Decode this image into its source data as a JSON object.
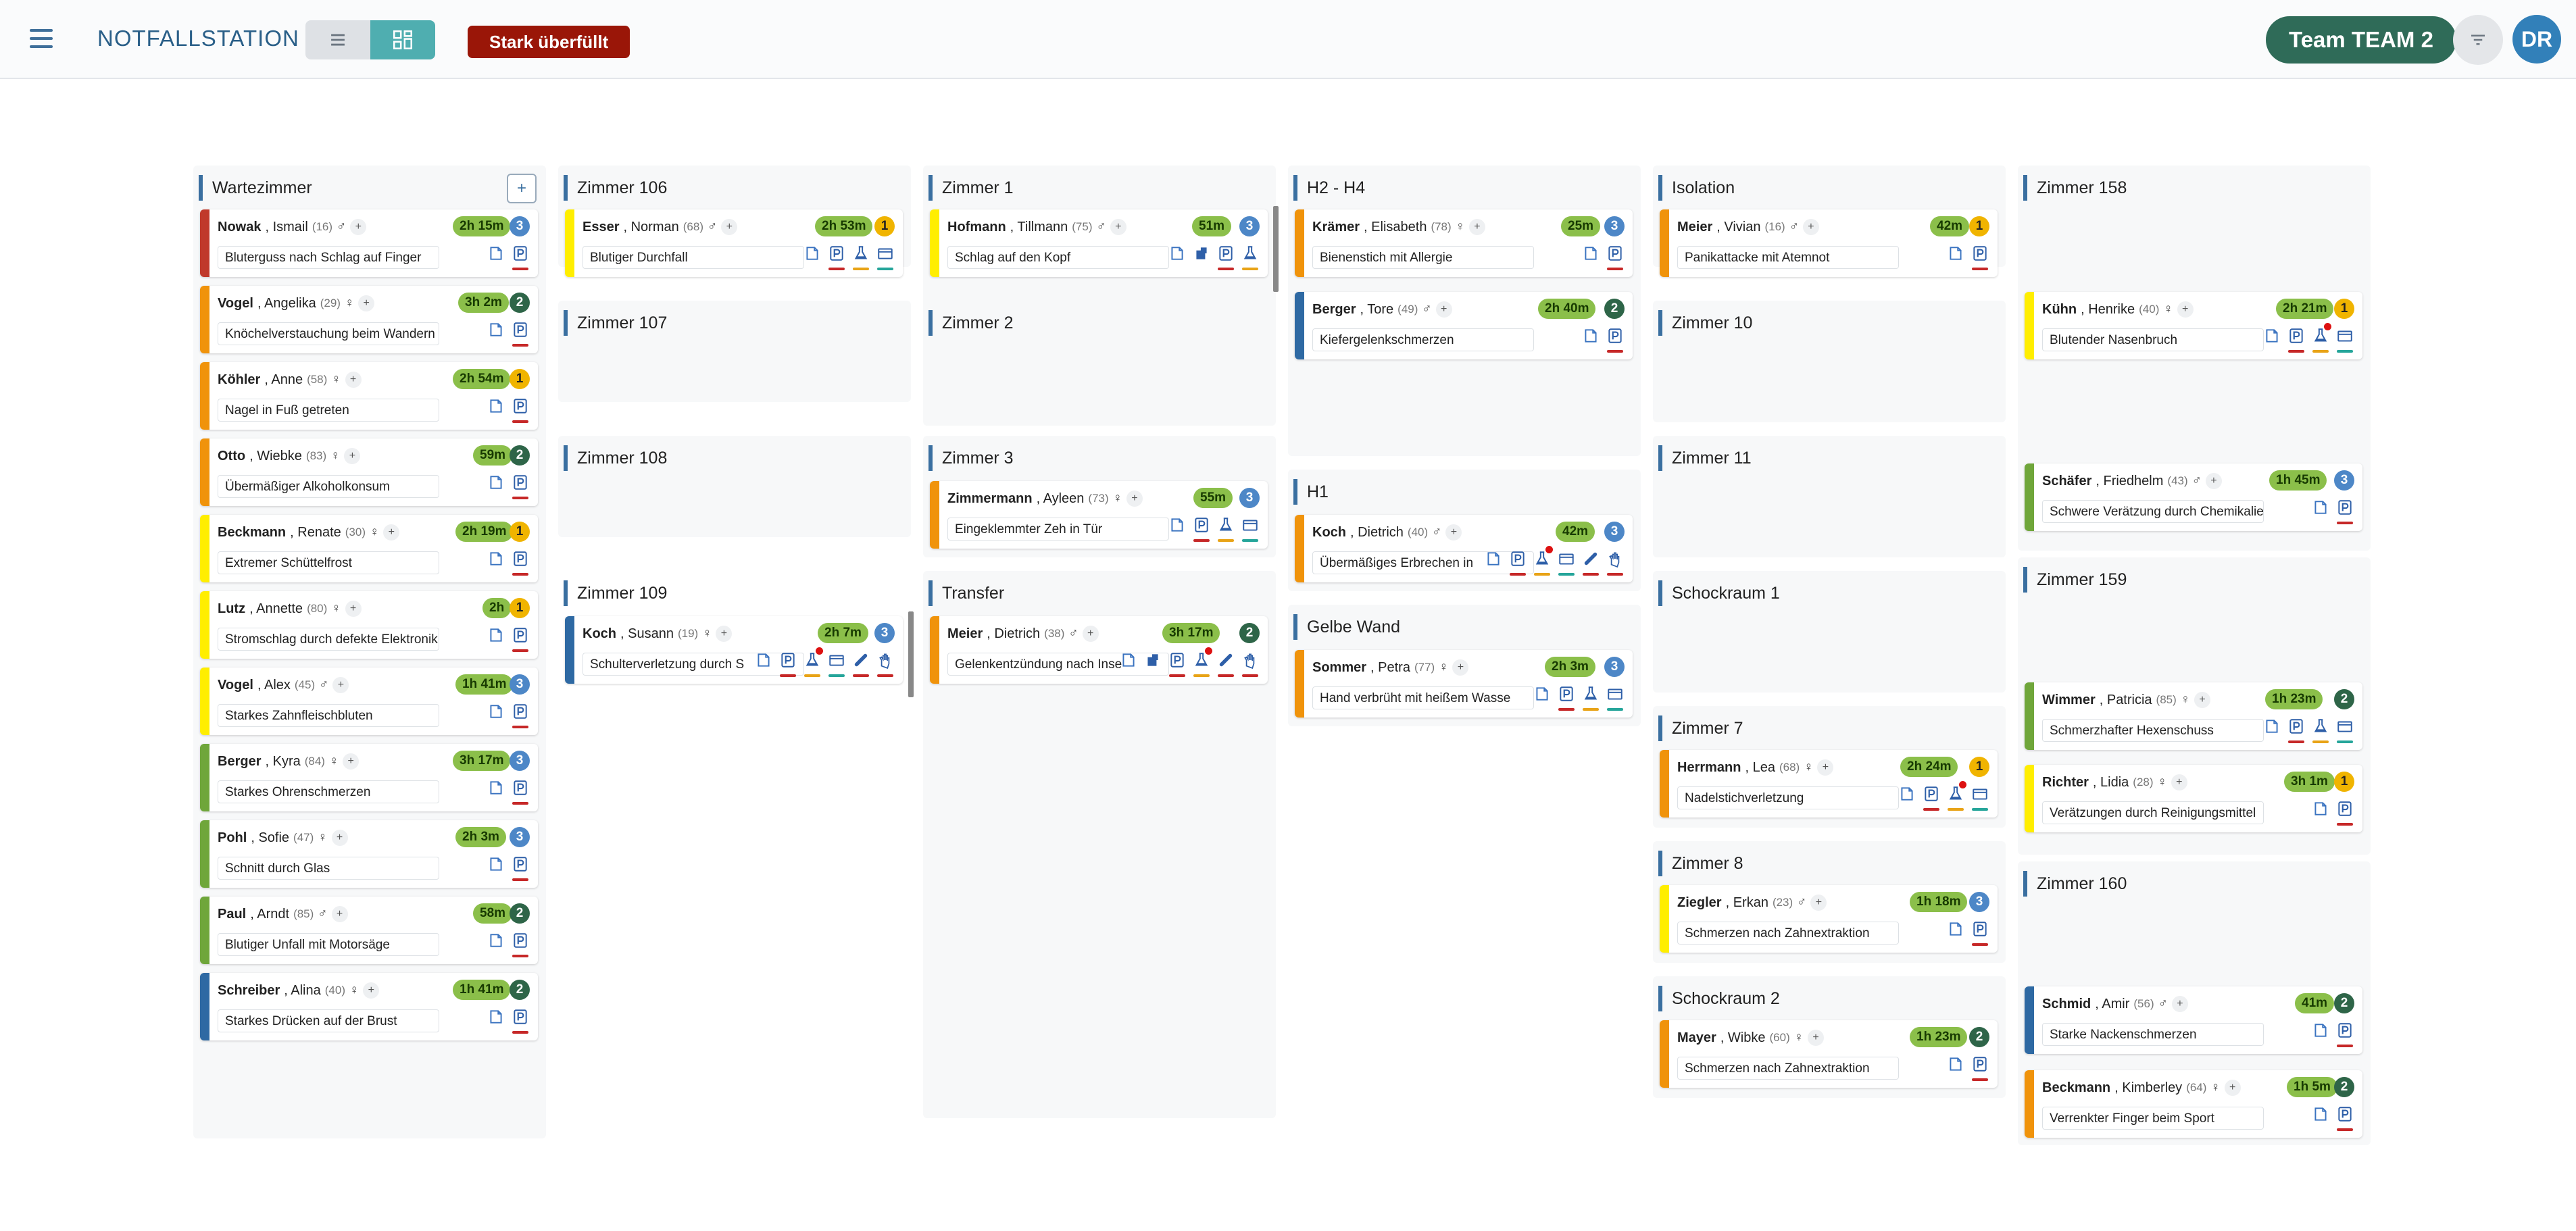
{
  "app": {
    "title": "NOTFALLSTATION",
    "alert_label": "Stark überfüllt",
    "team_label": "Team TEAM 2",
    "user_initials": "DR"
  },
  "colors": {
    "red": "#c0392b",
    "orange": "#f0930b",
    "yellow": "#ffee00",
    "green": "#6fa63a",
    "blue": "#2e69a3"
  },
  "rooms": {
    "wartezimmer": {
      "title": "Wartezimmer",
      "add_label": "+"
    },
    "z106": {
      "title": "Zimmer 106"
    },
    "z107": {
      "title": "Zimmer 107"
    },
    "z108": {
      "title": "Zimmer 108"
    },
    "z109": {
      "title": "Zimmer 109"
    },
    "z1": {
      "title": "Zimmer 1"
    },
    "z2": {
      "title": "Zimmer 2"
    },
    "z3": {
      "title": "Zimmer 3"
    },
    "transfer": {
      "title": "Transfer"
    },
    "h2h4": {
      "title": "H2 - H4"
    },
    "h1": {
      "title": "H1"
    },
    "gelbe": {
      "title": "Gelbe Wand"
    },
    "isolation": {
      "title": "Isolation"
    },
    "z10": {
      "title": "Zimmer 10"
    },
    "z11": {
      "title": "Zimmer 11"
    },
    "schock1": {
      "title": "Schockraum 1"
    },
    "z7": {
      "title": "Zimmer 7"
    },
    "z8": {
      "title": "Zimmer 8"
    },
    "schock2": {
      "title": "Schockraum 2"
    },
    "z158": {
      "title": "Zimmer 158"
    },
    "z159": {
      "title": "Zimmer 159"
    },
    "z160": {
      "title": "Zimmer 160"
    }
  },
  "patients": [
    {
      "last": "Nowak",
      "first": ", Ismail",
      "age": "(16)",
      "sex": "♂",
      "time": "2h 15m",
      "prio": "3",
      "complaint": "Bluterguss nach Schlag auf Finger"
    },
    {
      "last": "Vogel",
      "first": ", Angelika",
      "age": "(29)",
      "sex": "♀",
      "time": "3h 2m",
      "prio": "2",
      "complaint": "Knöchelverstauchung beim Wandern"
    },
    {
      "last": "Köhler",
      "first": ", Anne",
      "age": "(58)",
      "sex": "♀",
      "time": "2h 54m",
      "prio": "1",
      "complaint": "Nagel in Fuß getreten"
    },
    {
      "last": "Otto",
      "first": ", Wiebke",
      "age": "(83)",
      "sex": "♀",
      "time": "59m",
      "prio": "2",
      "complaint": "Übermäßiger Alkoholkonsum"
    },
    {
      "last": "Beckmann",
      "first": ", Renate",
      "age": "(30)",
      "sex": "♀",
      "time": "2h 19m",
      "prio": "1",
      "complaint": "Extremer Schüttelfrost"
    },
    {
      "last": "Lutz",
      "first": ", Annette",
      "age": "(80)",
      "sex": "♀",
      "time": "2h",
      "prio": "1",
      "complaint": "Stromschlag durch defekte Elektronik"
    },
    {
      "last": "Vogel",
      "first": ", Alex",
      "age": "(45)",
      "sex": "♂",
      "time": "1h 41m",
      "prio": "3",
      "complaint": "Starkes Zahnfleischbluten"
    },
    {
      "last": "Berger",
      "first": ", Kyra",
      "age": "(84)",
      "sex": "♀",
      "time": "3h 17m",
      "prio": "3",
      "complaint": "Starkes Ohrenschmerzen"
    },
    {
      "last": "Pohl",
      "first": ", Sofie",
      "age": "(47)",
      "sex": "♀",
      "time": "2h 3m",
      "prio": "3",
      "complaint": "Schnitt durch Glas"
    },
    {
      "last": "Paul",
      "first": ", Arndt",
      "age": "(85)",
      "sex": "♂",
      "time": "58m",
      "prio": "2",
      "complaint": "Blutiger Unfall mit Motorsäge"
    },
    {
      "last": "Schreiber",
      "first": ", Alina",
      "age": "(40)",
      "sex": "♀",
      "time": "1h 41m",
      "prio": "2",
      "complaint": "Starkes Drücken auf der Brust"
    },
    {
      "last": "Esser",
      "first": ", Norman",
      "age": "(68)",
      "sex": "♂",
      "time": "2h 53m",
      "prio": "1",
      "complaint": "Blutiger Durchfall"
    },
    {
      "last": "Koch",
      "first": ", Susann",
      "age": "(19)",
      "sex": "♀",
      "time": "2h 7m",
      "prio": "3",
      "complaint": "Schulterverletzung durch S"
    },
    {
      "last": "Hofmann",
      "first": ", Tillmann",
      "age": "(75)",
      "sex": "♂",
      "time": "51m",
      "prio": "3",
      "complaint": "Schlag auf den Kopf"
    },
    {
      "last": "Zimmermann",
      "first": ", Ayleen",
      "age": "(73)",
      "sex": "♀",
      "time": "55m",
      "prio": "3",
      "complaint": "Eingeklemmter Zeh in Tür"
    },
    {
      "last": "Meier",
      "first": ", Dietrich",
      "age": "(38)",
      "sex": "♂",
      "time": "3h 17m",
      "prio": "2",
      "complaint": "Gelenkentzündung nach Inse"
    },
    {
      "last": "Krämer",
      "first": ", Elisabeth",
      "age": "(78)",
      "sex": "♀",
      "time": "25m",
      "prio": "3",
      "complaint": "Bienenstich mit Allergie"
    },
    {
      "last": "Berger",
      "first": ", Tore",
      "age": "(49)",
      "sex": "♂",
      "time": "2h 40m",
      "prio": "2",
      "complaint": "Kiefergelenkschmerzen"
    },
    {
      "last": "Koch",
      "first": ", Dietrich",
      "age": "(40)",
      "sex": "♂",
      "time": "42m",
      "prio": "3",
      "complaint": "Übermäßiges Erbrechen in"
    },
    {
      "last": "Sommer",
      "first": ", Petra",
      "age": "(77)",
      "sex": "♀",
      "time": "2h 3m",
      "prio": "3",
      "complaint": "Hand verbrüht mit heißem Wasse"
    },
    {
      "last": "Meier",
      "first": ", Vivian",
      "age": "(16)",
      "sex": "♂",
      "time": "42m",
      "prio": "1",
      "complaint": "Panikattacke mit Atemnot"
    },
    {
      "last": "Herrmann",
      "first": ", Lea",
      "age": "(68)",
      "sex": "♀",
      "time": "2h 24m",
      "prio": "1",
      "complaint": "Nadelstichverletzung"
    },
    {
      "last": "Ziegler",
      "first": ", Erkan",
      "age": "(23)",
      "sex": "♂",
      "time": "1h 18m",
      "prio": "3",
      "complaint": "Schmerzen nach Zahnextraktion"
    },
    {
      "last": "Mayer",
      "first": ", Wibke",
      "age": "(60)",
      "sex": "♀",
      "time": "1h 23m",
      "prio": "2",
      "complaint": "Schmerzen nach Zahnextraktion"
    },
    {
      "last": "Kühn",
      "first": ", Henrike",
      "age": "(40)",
      "sex": "♀",
      "time": "2h 21m",
      "prio": "1",
      "complaint": "Blutender Nasenbruch"
    },
    {
      "last": "Schäfer",
      "first": ", Friedhelm",
      "age": "(43)",
      "sex": "♂",
      "time": "1h 45m",
      "prio": "3",
      "complaint": "Schwere Verätzung durch Chemikalie"
    },
    {
      "last": "Wimmer",
      "first": ", Patricia",
      "age": "(85)",
      "sex": "♀",
      "time": "1h 23m",
      "prio": "2",
      "complaint": "Schmerzhafter Hexenschuss"
    },
    {
      "last": "Richter",
      "first": ", Lidia",
      "age": "(28)",
      "sex": "♀",
      "time": "3h 1m",
      "prio": "1",
      "complaint": "Verätzungen durch Reinigungsmittel"
    },
    {
      "last": "Schmid",
      "first": ", Amir",
      "age": "(56)",
      "sex": "♂",
      "time": "41m",
      "prio": "2",
      "complaint": "Starke Nackenschmerzen"
    },
    {
      "last": "Beckmann",
      "first": ", Kimberley",
      "age": "(64)",
      "sex": "♀",
      "time": "1h 5m",
      "prio": "2",
      "complaint": "Verrenkter Finger beim Sport"
    }
  ]
}
